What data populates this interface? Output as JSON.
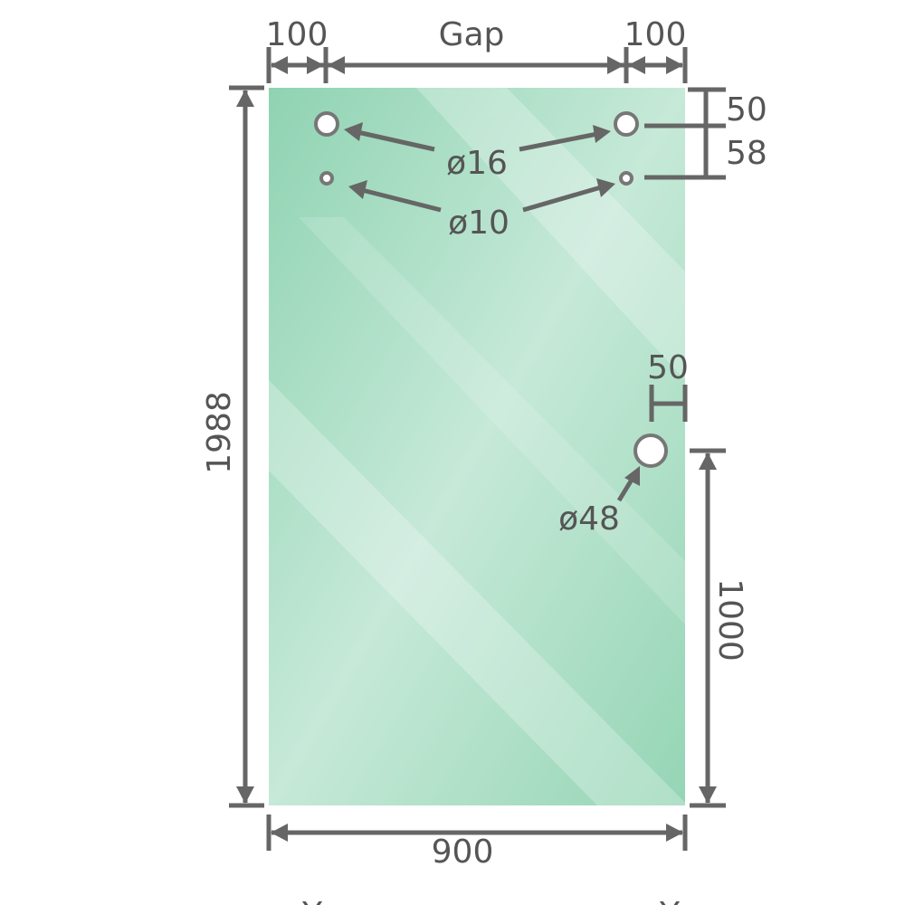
{
  "colors": {
    "glass_edge": "#8fd3b2",
    "glass_center": "#c8eadb",
    "dimension_line": "#666666",
    "text": "#555555"
  },
  "dimensions": {
    "left_offset": "100",
    "gap": "Gap",
    "right_offset": "100",
    "height": "1988",
    "width": "900",
    "top_hole_offset": "50",
    "hole_spacing": "58",
    "handle_edge_offset": "50",
    "handle_height": "1000"
  },
  "holes": {
    "large": "ø16",
    "small": "ø10",
    "handle": "ø48"
  },
  "footer": {
    "left_mark": "Y",
    "right_mark": "Y"
  }
}
